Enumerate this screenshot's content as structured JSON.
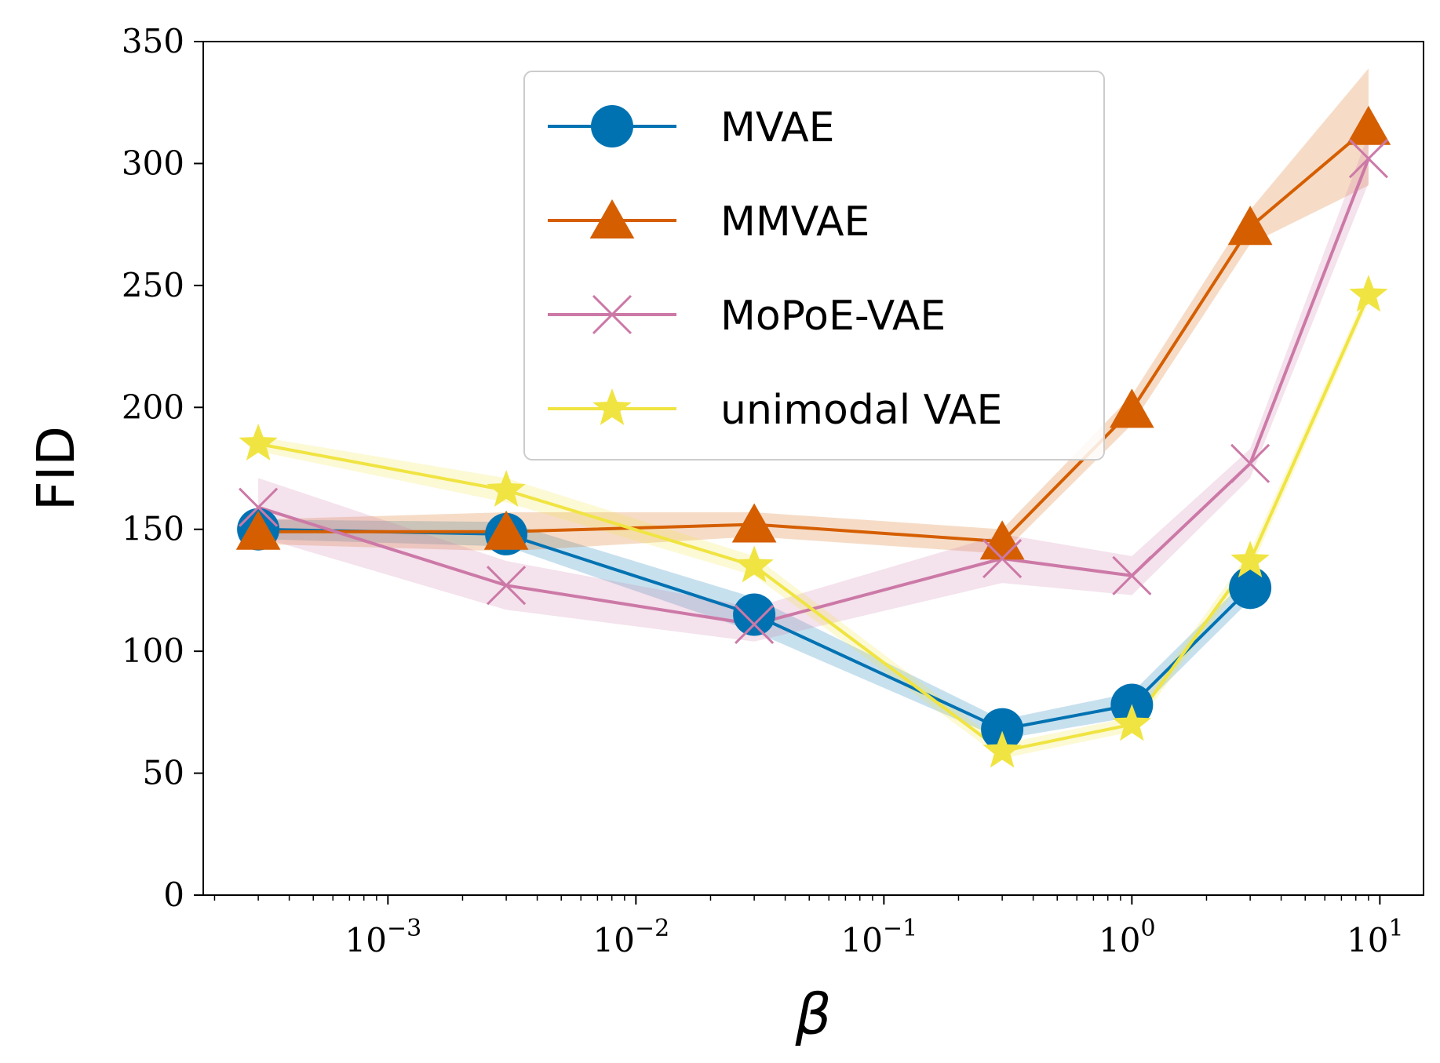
{
  "chart_data": {
    "type": "line",
    "xscale": "log",
    "xlabel": "β",
    "ylabel": "FID",
    "xlim": [
      0.00018,
      15
    ],
    "ylim": [
      0,
      350
    ],
    "yticks": [
      "0",
      "50",
      "100",
      "150",
      "200",
      "250",
      "300",
      "350"
    ],
    "xticks": [
      {
        "value": 0.001,
        "base": "10",
        "exp": "−3"
      },
      {
        "value": 0.01,
        "base": "10",
        "exp": "−2"
      },
      {
        "value": 0.1,
        "base": "10",
        "exp": "−1"
      },
      {
        "value": 1,
        "base": "10",
        "exp": "0"
      },
      {
        "value": 10,
        "base": "10",
        "exp": "1"
      }
    ],
    "x": [
      0.0003,
      0.003,
      0.03,
      0.3,
      1,
      3,
      9
    ],
    "series": [
      {
        "name": "MVAE",
        "color": "#0072b2",
        "marker": "circle",
        "values": [
          150,
          148,
          115,
          68,
          78,
          126,
          null
        ],
        "band": [
          4,
          5,
          7,
          4,
          5,
          5,
          null
        ]
      },
      {
        "name": "MMVAE",
        "color": "#d55e00",
        "marker": "triangle",
        "values": [
          149,
          149,
          152,
          145,
          199,
          274,
          315
        ],
        "band": [
          5,
          8,
          5,
          5,
          6,
          7,
          24
        ]
      },
      {
        "name": "MoPoE-VAE",
        "color": "#cc79a7",
        "marker": "x",
        "values": [
          159,
          127,
          111,
          138,
          131,
          177,
          302
        ],
        "band": [
          12,
          10,
          7,
          10,
          8,
          6,
          10
        ]
      },
      {
        "name": "unimodal VAE",
        "color": "#f0e442",
        "marker": "star",
        "values": [
          185,
          166,
          135,
          59,
          70,
          137,
          246
        ],
        "band": [
          3,
          5,
          4,
          3,
          3,
          4,
          3
        ]
      }
    ],
    "legend": "top-center"
  }
}
